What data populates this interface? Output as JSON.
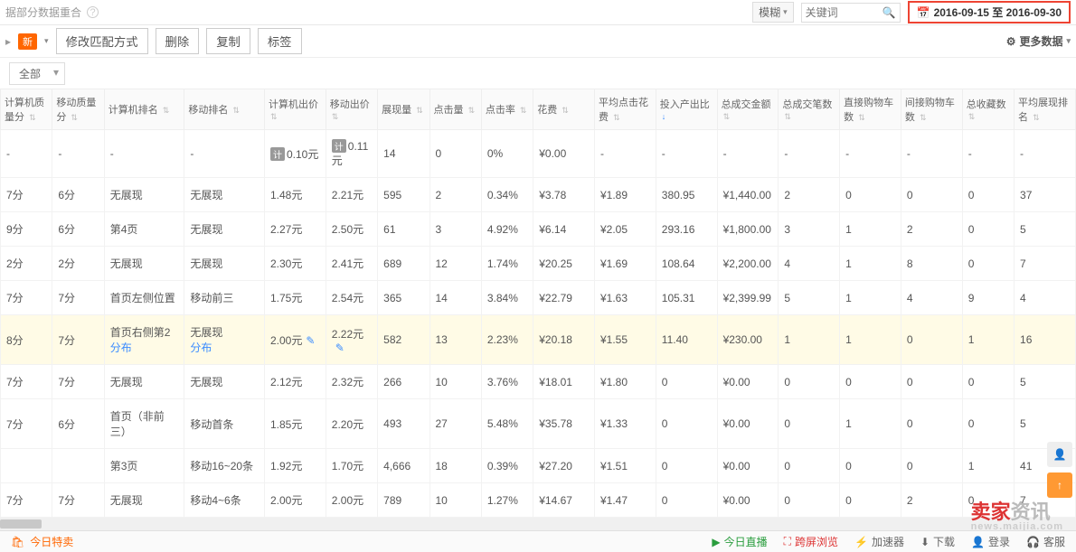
{
  "header": {
    "breadcrumb": "据部分数据重合",
    "search_mode": "模糊",
    "search_placeholder": "关键词",
    "date_range": "2016-09-15 至 2016-09-30"
  },
  "toolbar": {
    "new_badge": "新",
    "btn_match": "修改匹配方式",
    "btn_delete": "删除",
    "btn_copy": "复制",
    "btn_tag": "标签",
    "more_data": "更多数据"
  },
  "filter": {
    "all": "全部"
  },
  "columns": [
    "计算机质量分",
    "移动质量分",
    "计算机排名",
    "移动排名",
    "计算机出价",
    "移动出价",
    "展现量",
    "点击量",
    "点击率",
    "花费",
    "平均点击花费",
    "投入产出比",
    "总成交金额",
    "总成交笔数",
    "直接购物车数",
    "间接购物车数",
    "总收藏数",
    "平均展现排名"
  ],
  "sort_active_col": 11,
  "rows": [
    {
      "cells": [
        "-",
        "-",
        "-",
        "-",
        "0.10元",
        "0.11元",
        "14",
        "0",
        "0%",
        "¥0.00",
        "-",
        "-",
        "-",
        "-",
        "-",
        "-",
        "-",
        "-"
      ],
      "prefix_pill": [
        4,
        5
      ]
    },
    {
      "cells": [
        "7分",
        "6分",
        "无展现",
        "无展现",
        "1.48元",
        "2.21元",
        "595",
        "2",
        "0.34%",
        "¥3.78",
        "¥1.89",
        "380.95",
        "¥1,440.00",
        "2",
        "0",
        "0",
        "0",
        "37"
      ]
    },
    {
      "cells": [
        "9分",
        "6分",
        "第4页",
        "无展现",
        "2.27元",
        "2.50元",
        "61",
        "3",
        "4.92%",
        "¥6.14",
        "¥2.05",
        "293.16",
        "¥1,800.00",
        "3",
        "1",
        "2",
        "0",
        "5"
      ]
    },
    {
      "cells": [
        "2分",
        "2分",
        "无展现",
        "无展现",
        "2.30元",
        "2.41元",
        "689",
        "12",
        "1.74%",
        "¥20.25",
        "¥1.69",
        "108.64",
        "¥2,200.00",
        "4",
        "1",
        "8",
        "0",
        "7"
      ]
    },
    {
      "cells": [
        "7分",
        "7分",
        "首页左侧位置",
        "移动前三",
        "1.75元",
        "2.54元",
        "365",
        "14",
        "3.84%",
        "¥22.79",
        "¥1.63",
        "105.31",
        "¥2,399.99",
        "5",
        "1",
        "4",
        "9",
        "4"
      ]
    },
    {
      "cells": [
        "8分",
        "7分",
        "首页右侧第2",
        "无展现",
        "2.00元",
        "2.22元",
        "582",
        "13",
        "2.23%",
        "¥20.18",
        "¥1.55",
        "11.40",
        "¥230.00",
        "1",
        "1",
        "0",
        "1",
        "16"
      ],
      "hl": true,
      "sub": [
        "",
        "",
        "分布",
        "分布"
      ],
      "edit": [
        4,
        5
      ]
    },
    {
      "cells": [
        "7分",
        "7分",
        "无展现",
        "无展现",
        "2.12元",
        "2.32元",
        "266",
        "10",
        "3.76%",
        "¥18.01",
        "¥1.80",
        "0",
        "¥0.00",
        "0",
        "0",
        "0",
        "0",
        "5"
      ]
    },
    {
      "cells": [
        "7分",
        "6分",
        "首页（非前三）",
        "移动首条",
        "1.85元",
        "2.20元",
        "493",
        "27",
        "5.48%",
        "¥35.78",
        "¥1.33",
        "0",
        "¥0.00",
        "0",
        "1",
        "0",
        "0",
        "5"
      ]
    },
    {
      "cells": [
        "",
        "",
        "第3页",
        "移动16~20条",
        "1.92元",
        "1.70元",
        "4,666",
        "18",
        "0.39%",
        "¥27.20",
        "¥1.51",
        "0",
        "¥0.00",
        "0",
        "0",
        "0",
        "1",
        "41"
      ]
    },
    {
      "cells": [
        "7分",
        "7分",
        "无展现",
        "移动4~6条",
        "2.00元",
        "2.00元",
        "789",
        "10",
        "1.27%",
        "¥14.67",
        "¥1.47",
        "0",
        "¥0.00",
        "0",
        "0",
        "2",
        "0",
        "7"
      ]
    }
  ],
  "bottom": {
    "today_sale": "今日特卖",
    "live": "今日直播",
    "cross": "跨屏浏览",
    "accel": "加速器",
    "download": "下载",
    "login": "登录",
    "cs": "客服"
  },
  "watermark": {
    "main_a": "卖家",
    "main_b": "资讯",
    "sub": "news.maijia.com"
  },
  "icons": {
    "gear": "⚙",
    "pencil": "✎",
    "search": "🔍",
    "cal": "📅",
    "person": "👤",
    "up": "↑"
  }
}
